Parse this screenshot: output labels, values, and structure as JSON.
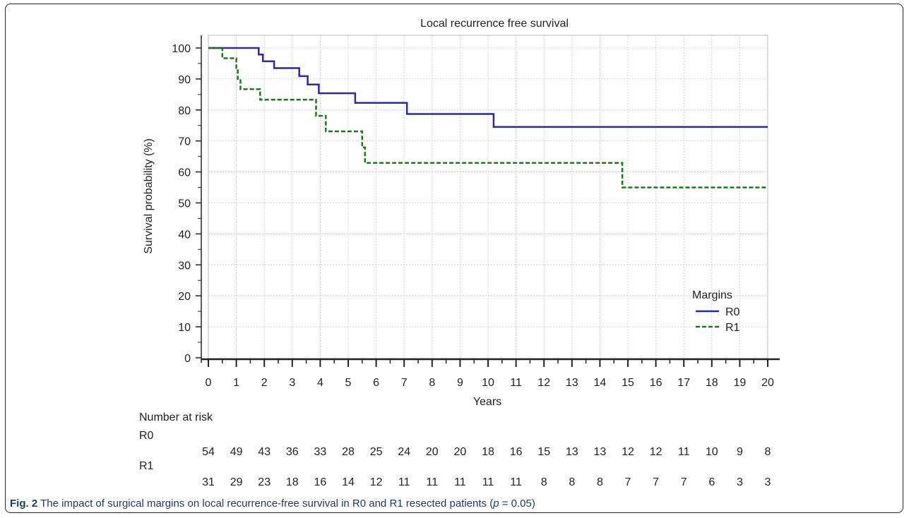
{
  "chart_data": {
    "type": "line",
    "title": "Local recurrence free survival",
    "xlabel": "Years",
    "ylabel": "Survival probability (%)",
    "xlim": [
      0,
      20
    ],
    "ylim": [
      0,
      100
    ],
    "x_ticks": [
      "0",
      "1",
      "2",
      "3",
      "4",
      "5",
      "6",
      "7",
      "8",
      "9",
      "10",
      "11",
      "12",
      "13",
      "14",
      "15",
      "16",
      "17",
      "18",
      "19",
      "20"
    ],
    "y_ticks": [
      "0",
      "10",
      "20",
      "30",
      "40",
      "50",
      "60",
      "70",
      "80",
      "90",
      "100"
    ],
    "grid": true,
    "legend": {
      "title": "Margins",
      "placement": "bottom-right"
    },
    "series": [
      {
        "name": "R0",
        "color": "#2b2b9a",
        "style": "solid",
        "steps": [
          [
            0,
            100
          ],
          [
            1.8,
            100
          ],
          [
            1.8,
            97.9
          ],
          [
            1.95,
            97.9
          ],
          [
            1.95,
            95.7
          ],
          [
            2.35,
            95.7
          ],
          [
            2.35,
            93.5
          ],
          [
            3.25,
            93.5
          ],
          [
            3.25,
            90.9
          ],
          [
            3.55,
            90.9
          ],
          [
            3.55,
            88.2
          ],
          [
            3.95,
            88.2
          ],
          [
            3.95,
            85.4
          ],
          [
            5.25,
            85.4
          ],
          [
            5.25,
            82.3
          ],
          [
            7.1,
            82.3
          ],
          [
            7.1,
            78.7
          ],
          [
            10.2,
            78.7
          ],
          [
            10.2,
            74.5
          ],
          [
            20,
            74.5
          ]
        ]
      },
      {
        "name": "R1",
        "color": "#1a7a1a",
        "style": "dashed",
        "steps": [
          [
            0,
            100
          ],
          [
            0.5,
            100
          ],
          [
            0.5,
            96.7
          ],
          [
            1.0,
            96.7
          ],
          [
            1.0,
            93.3
          ],
          [
            1.05,
            93.3
          ],
          [
            1.05,
            90.0
          ],
          [
            1.15,
            90.0
          ],
          [
            1.15,
            86.7
          ],
          [
            1.85,
            86.7
          ],
          [
            1.85,
            83.3
          ],
          [
            3.85,
            83.3
          ],
          [
            3.85,
            78.1
          ],
          [
            4.2,
            78.1
          ],
          [
            4.2,
            73.1
          ],
          [
            5.5,
            73.1
          ],
          [
            5.5,
            67.9
          ],
          [
            5.6,
            67.9
          ],
          [
            5.6,
            62.9
          ],
          [
            14.8,
            62.9
          ],
          [
            14.8,
            55.0
          ],
          [
            20,
            55.0
          ]
        ]
      }
    ],
    "risk_table": {
      "title": "Number at risk",
      "rows": [
        {
          "name": "R0",
          "values": [
            "54",
            "49",
            "43",
            "36",
            "33",
            "28",
            "25",
            "24",
            "20",
            "20",
            "18",
            "16",
            "15",
            "13",
            "13",
            "12",
            "12",
            "11",
            "10",
            "9",
            "8"
          ]
        },
        {
          "name": "R1",
          "values": [
            "31",
            "29",
            "23",
            "18",
            "16",
            "14",
            "12",
            "11",
            "11",
            "11",
            "11",
            "11",
            "8",
            "8",
            "8",
            "7",
            "7",
            "7",
            "6",
            "3",
            "3"
          ]
        }
      ]
    }
  },
  "caption": {
    "label": "Fig. 2",
    "text_before": " The impact of surgical margins on local recurrence-free survival in R0 and R1 resected patients (",
    "p_symbol": "p",
    "text_after": " = 0.05)"
  }
}
